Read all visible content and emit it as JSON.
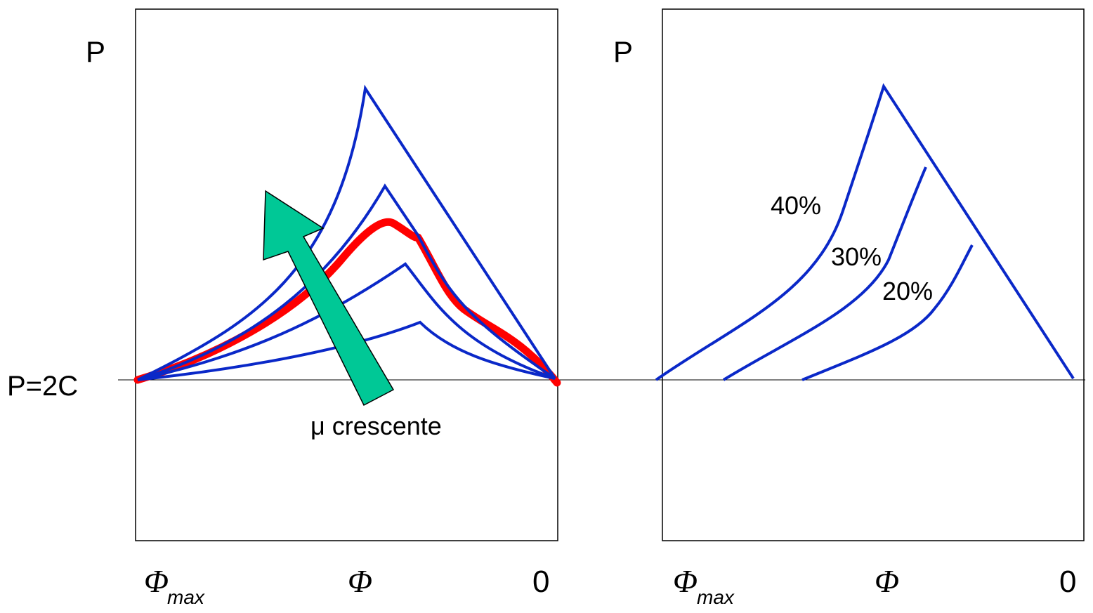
{
  "diagram": {
    "shared": {
      "baseline_label": "P=2C",
      "curve_color": "#0a28c8",
      "highlight_color": "#ff0000",
      "arrow_color": "#00c896"
    },
    "left_panel": {
      "y_axis_label": "P",
      "x_left_label": "Φ",
      "x_left_subscript": "max",
      "x_mid_label": "Φ",
      "x_right_label": "0",
      "arrow_label": "μ crescente"
    },
    "right_panel": {
      "y_axis_label": "P",
      "x_left_label": "Φ",
      "x_left_subscript": "max",
      "x_mid_label": "Φ",
      "x_right_label": "0",
      "curve_labels": [
        "40%",
        "30%",
        "20%"
      ]
    }
  }
}
